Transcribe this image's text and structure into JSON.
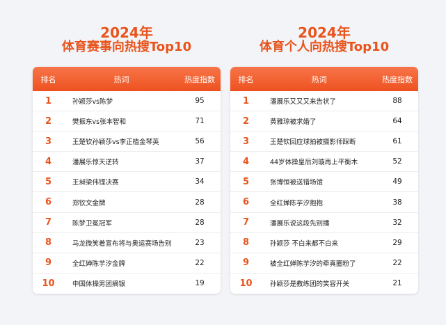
{
  "left": {
    "title_year": "2024年",
    "title_sub": "体育赛事向热搜Top10",
    "headers": {
      "rank": "排名",
      "term": "热词",
      "index": "热度指数"
    },
    "rows": [
      {
        "rank": "1",
        "term": "孙颖莎vs陈梦",
        "index": "95"
      },
      {
        "rank": "2",
        "term": "樊振东vs张本智和",
        "index": "71"
      },
      {
        "rank": "3",
        "term": "王楚钦孙颖莎vs李正植金琴英",
        "index": "56"
      },
      {
        "rank": "4",
        "term": "潘展乐惊天逆转",
        "index": "37"
      },
      {
        "rank": "5",
        "term": "王昶梁伟铿决赛",
        "index": "34"
      },
      {
        "rank": "6",
        "term": "郑钦文金牌",
        "index": "28"
      },
      {
        "rank": "7",
        "term": "陈梦卫冕冠军",
        "index": "28"
      },
      {
        "rank": "8",
        "term": "马龙微笑着宣布将与奥运赛场告别",
        "index": "23"
      },
      {
        "rank": "9",
        "term": "全红婵陈芋汐金牌",
        "index": "22"
      },
      {
        "rank": "10",
        "term": "中国体操男团摘银",
        "index": "19"
      }
    ]
  },
  "right": {
    "title_year": "2024年",
    "title_sub": "体育个人向热搜Top10",
    "headers": {
      "rank": "排名",
      "term": "热词",
      "index": "热度指数"
    },
    "rows": [
      {
        "rank": "1",
        "term": "潘展乐又又又来告状了",
        "index": "88"
      },
      {
        "rank": "2",
        "term": "黄雅琼被求婚了",
        "index": "64"
      },
      {
        "rank": "3",
        "term": "王楚钦回应球拍被摄影师踩断",
        "index": "61"
      },
      {
        "rank": "4",
        "term": "44岁体操皇后刘璇再上平衡木",
        "index": "52"
      },
      {
        "rank": "5",
        "term": "张博恒被送错场馆",
        "index": "49"
      },
      {
        "rank": "6",
        "term": "全红婵陈芋汐抱抱",
        "index": "38"
      },
      {
        "rank": "7",
        "term": "潘展乐说这段先别播",
        "index": "32"
      },
      {
        "rank": "8",
        "term": "孙颖莎 不白来都不白来",
        "index": "29"
      },
      {
        "rank": "9",
        "term": "被全红婵陈芋汐的牵真圈粉了",
        "index": "22"
      },
      {
        "rank": "10",
        "term": "孙颖莎是教练团的笑容开关",
        "index": "21"
      }
    ]
  }
}
